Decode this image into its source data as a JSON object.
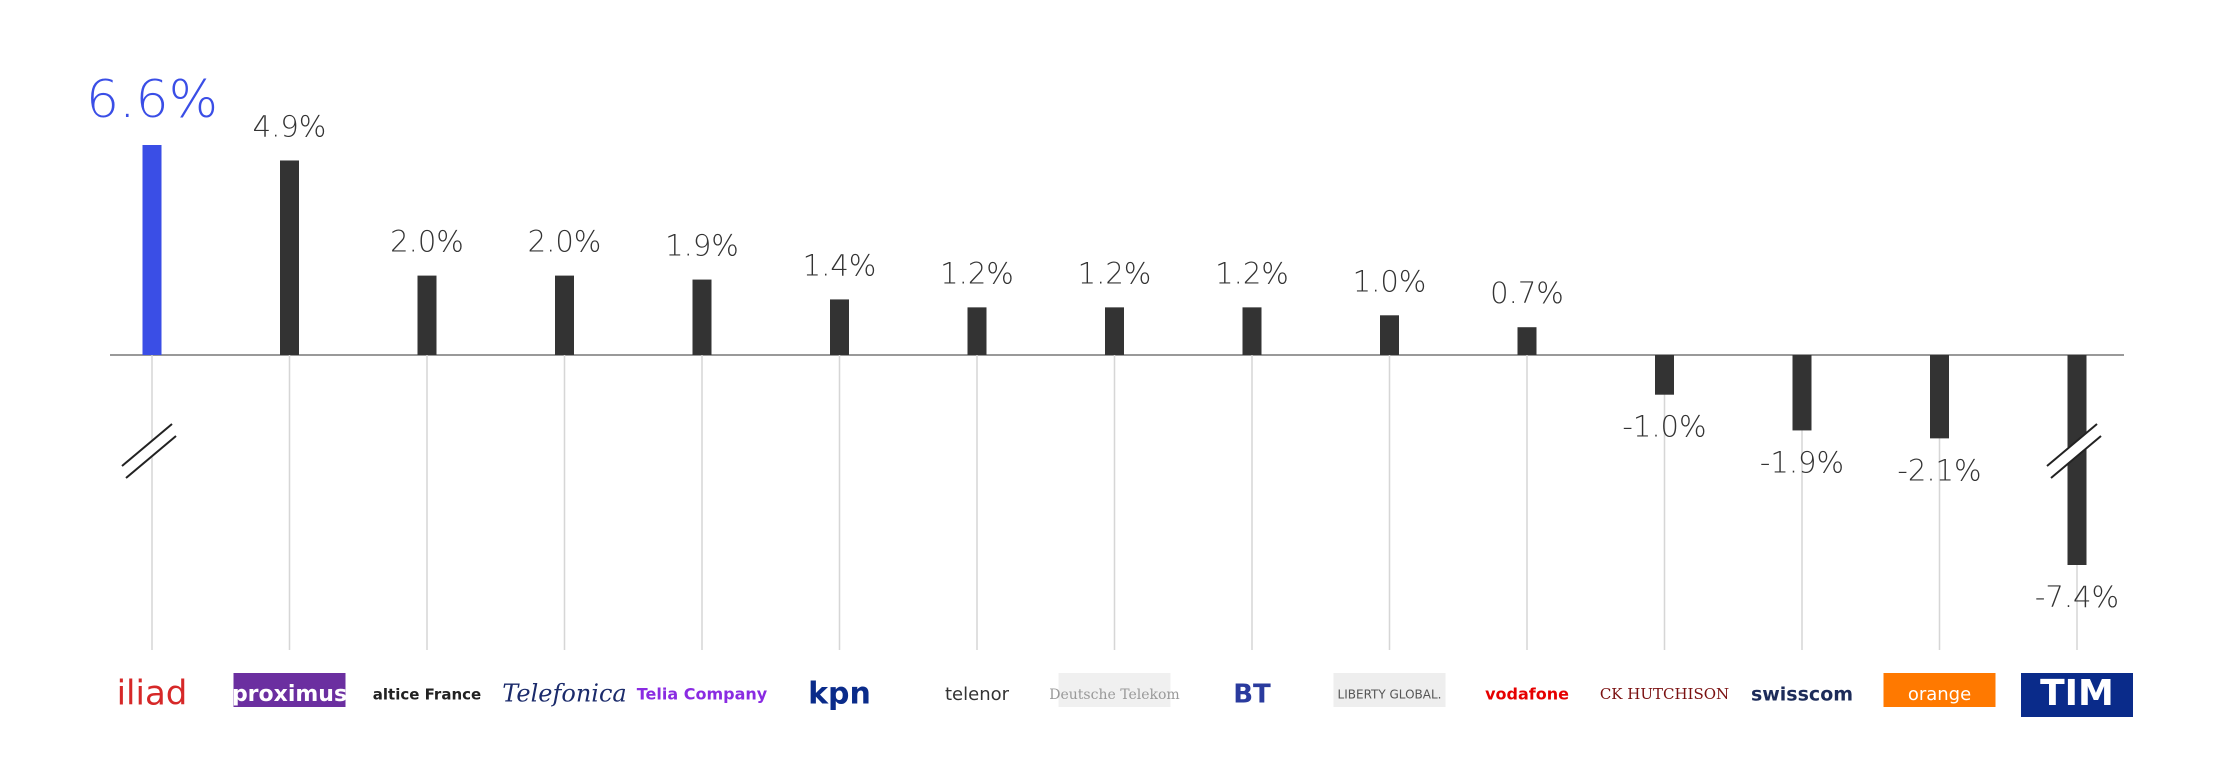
{
  "chart_data": {
    "type": "bar",
    "categories": [
      "iliad",
      "proximus",
      "altice France",
      "Telefonica",
      "Telia Company",
      "kpn",
      "telenor",
      "Deutsche Telekom",
      "BT",
      "LIBERTY GLOBAL.",
      "vodafone",
      "CK HUTCHISON",
      "swisscom",
      "orange",
      "TIM"
    ],
    "values": [
      6.6,
      4.9,
      2.0,
      2.0,
      1.9,
      1.4,
      1.2,
      1.2,
      1.2,
      1.0,
      0.7,
      -1.0,
      -1.9,
      -2.1,
      -7.4
    ],
    "value_labels": [
      "6.6%",
      "4.9%",
      "2.0%",
      "2.0%",
      "1.9%",
      "1.4%",
      "1.2%",
      "1.2%",
      "1.2%",
      "1.0%",
      "0.7%",
      "-1.0%",
      "-1.9%",
      "-2.1%",
      "-7.4%"
    ],
    "colors": [
      "#3a4ee6",
      "#333333",
      "#333333",
      "#333333",
      "#333333",
      "#333333",
      "#333333",
      "#333333",
      "#333333",
      "#333333",
      "#333333",
      "#333333",
      "#333333",
      "#333333",
      "#333333"
    ]
  }
}
